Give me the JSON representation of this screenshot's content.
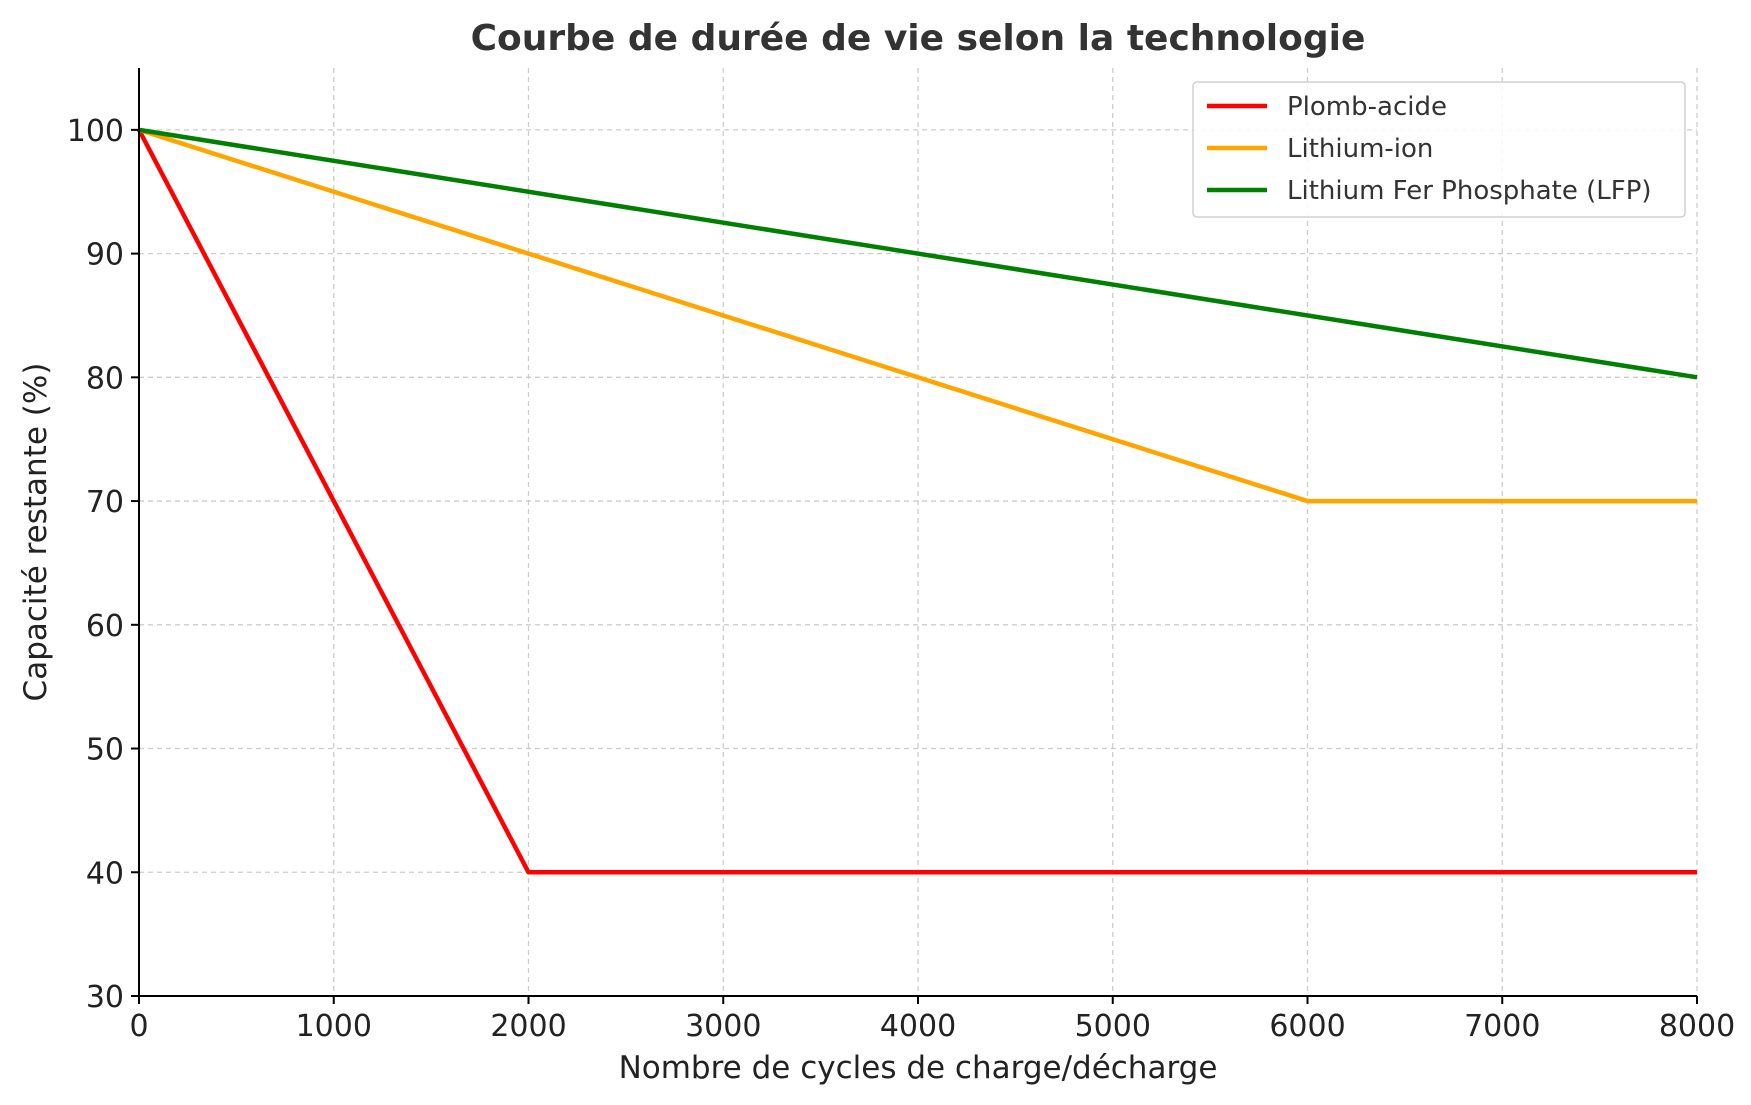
{
  "chart_data": {
    "type": "line",
    "title": "Courbe de durée de vie selon la technologie",
    "xlabel": "Nombre de cycles de charge/décharge",
    "ylabel": "Capacité restante (%)",
    "xlim": [
      0,
      8000
    ],
    "ylim": [
      30,
      105
    ],
    "xticks": [
      "0",
      "1000",
      "2000",
      "3000",
      "4000",
      "5000",
      "6000",
      "7000",
      "8000"
    ],
    "yticks": [
      "30",
      "40",
      "50",
      "60",
      "70",
      "80",
      "90",
      "100"
    ],
    "grid": true,
    "legend_position": "top-right",
    "series": [
      {
        "name": "Plomb-acide",
        "color": "#ff0000",
        "points": [
          [
            0,
            100
          ],
          [
            2000,
            40
          ],
          [
            8000,
            40
          ]
        ]
      },
      {
        "name": "Lithium-ion",
        "color": "#ffa500",
        "points": [
          [
            0,
            100
          ],
          [
            6000,
            70
          ],
          [
            8000,
            70
          ]
        ]
      },
      {
        "name": "Lithium Fer Phosphate (LFP)",
        "color": "#008000",
        "points": [
          [
            0,
            100
          ],
          [
            8000,
            80
          ]
        ]
      }
    ]
  }
}
